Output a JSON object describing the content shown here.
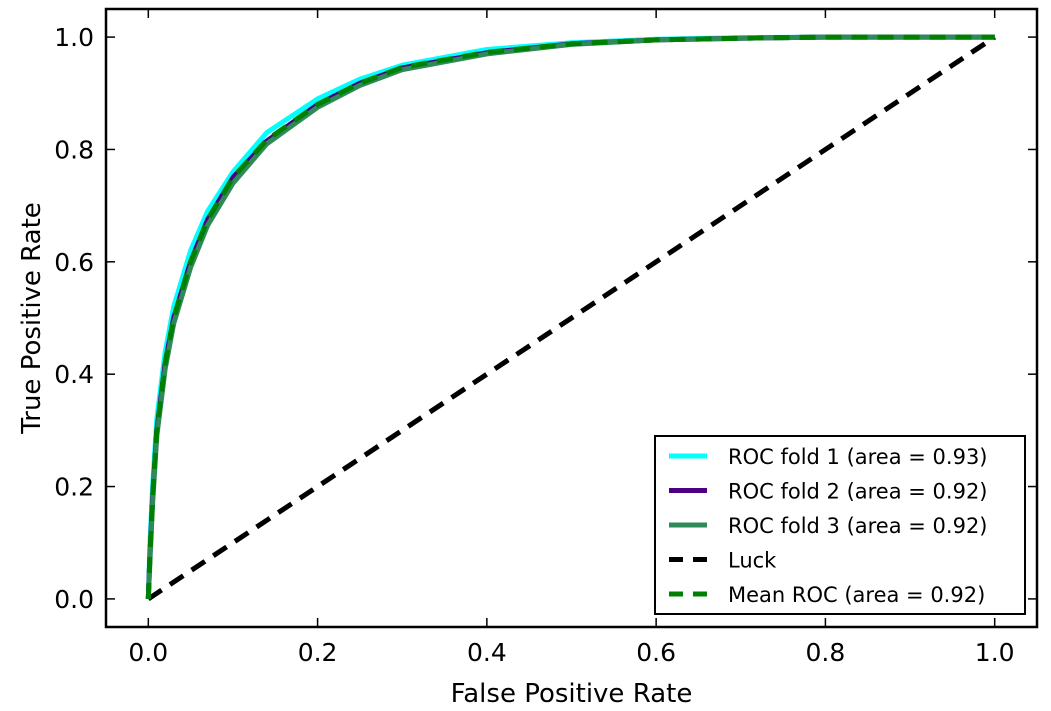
{
  "chart_data": {
    "type": "line",
    "title": "",
    "xlabel": "False Positive Rate",
    "ylabel": "True Positive Rate",
    "xlim": [
      -0.05,
      1.05
    ],
    "ylim": [
      -0.05,
      1.05
    ],
    "xticks": [
      "0.0",
      "0.2",
      "0.4",
      "0.6",
      "0.8",
      "1.0"
    ],
    "yticks": [
      "0.0",
      "0.2",
      "0.4",
      "0.6",
      "0.8",
      "1.0"
    ],
    "grid": false,
    "legend_position": "lower-right",
    "series": [
      {
        "name": "ROC fold 1 (area = 0.93)",
        "color": "#00ffff",
        "style": "solid",
        "x": [
          0.0,
          0.002,
          0.005,
          0.01,
          0.02,
          0.03,
          0.05,
          0.07,
          0.1,
          0.14,
          0.2,
          0.25,
          0.3,
          0.4,
          0.5,
          0.6,
          0.7,
          0.8,
          0.9,
          1.0
        ],
        "y": [
          0.0,
          0.1,
          0.2,
          0.32,
          0.44,
          0.52,
          0.62,
          0.69,
          0.76,
          0.83,
          0.89,
          0.925,
          0.95,
          0.978,
          0.99,
          0.996,
          0.999,
          1.0,
          1.0,
          1.0
        ]
      },
      {
        "name": "ROC fold 2 (area = 0.92)",
        "color": "#4b0082",
        "style": "solid",
        "x": [
          0.0,
          0.002,
          0.005,
          0.01,
          0.02,
          0.03,
          0.05,
          0.07,
          0.1,
          0.14,
          0.2,
          0.25,
          0.3,
          0.4,
          0.5,
          0.6,
          0.7,
          0.8,
          0.9,
          1.0
        ],
        "y": [
          0.0,
          0.08,
          0.18,
          0.3,
          0.42,
          0.5,
          0.6,
          0.675,
          0.75,
          0.815,
          0.88,
          0.918,
          0.945,
          0.972,
          0.988,
          0.995,
          0.998,
          1.0,
          1.0,
          1.0
        ]
      },
      {
        "name": "ROC fold 3 (area = 0.92)",
        "color": "#2e8b57",
        "style": "solid",
        "x": [
          0.0,
          0.002,
          0.005,
          0.01,
          0.02,
          0.03,
          0.05,
          0.07,
          0.1,
          0.14,
          0.2,
          0.25,
          0.3,
          0.4,
          0.5,
          0.6,
          0.7,
          0.8,
          0.9,
          1.0
        ],
        "y": [
          0.0,
          0.07,
          0.17,
          0.29,
          0.41,
          0.49,
          0.59,
          0.665,
          0.74,
          0.81,
          0.875,
          0.914,
          0.942,
          0.97,
          0.987,
          0.995,
          0.998,
          1.0,
          1.0,
          1.0
        ]
      },
      {
        "name": "Luck",
        "color": "#000000",
        "style": "dashed",
        "x": [
          0.0,
          1.0
        ],
        "y": [
          0.0,
          1.0
        ]
      },
      {
        "name": "Mean ROC (area = 0.92)",
        "color": "#008000",
        "style": "dashed",
        "x": [
          0.0,
          0.002,
          0.005,
          0.01,
          0.02,
          0.03,
          0.05,
          0.07,
          0.1,
          0.14,
          0.2,
          0.25,
          0.3,
          0.4,
          0.5,
          0.6,
          0.7,
          0.8,
          0.9,
          1.0
        ],
        "y": [
          0.0,
          0.08,
          0.18,
          0.3,
          0.42,
          0.5,
          0.6,
          0.675,
          0.75,
          0.817,
          0.88,
          0.918,
          0.946,
          0.973,
          0.988,
          0.995,
          0.998,
          1.0,
          1.0,
          1.0
        ]
      }
    ]
  }
}
